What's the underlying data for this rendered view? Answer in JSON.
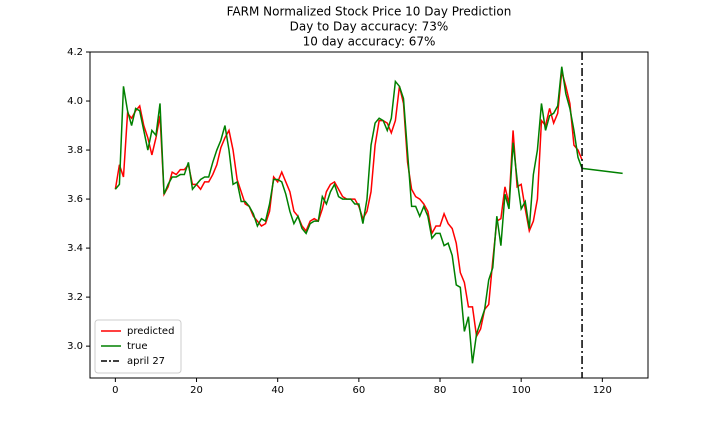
{
  "chart_data": {
    "type": "line",
    "title": "FARM Normalized Stock Price 10 Day Prediction",
    "subtitle": [
      "Day to Day accuracy: 73%",
      "10 day accuracy: 67%"
    ],
    "xlim": [
      -6.25,
      131.25
    ],
    "ylim": [
      2.87,
      4.2
    ],
    "xticks": [
      0,
      20,
      40,
      60,
      80,
      100,
      120
    ],
    "yticks": [
      {
        "value": 3,
        "label": "3.0"
      },
      3.2,
      3.4,
      3.6,
      3.8,
      {
        "value": 4,
        "label": "4.0"
      },
      4.2
    ],
    "legend": "lower left",
    "series": [
      {
        "name": "predicted",
        "color": "#ff0000",
        "x": [
          0,
          1,
          2,
          3,
          4,
          5,
          6,
          7,
          8,
          9,
          10,
          11,
          12,
          13,
          14,
          15,
          16,
          17,
          18,
          19,
          20,
          21,
          22,
          23,
          24,
          25,
          26,
          27,
          28,
          29,
          30,
          31,
          32,
          33,
          34,
          35,
          36,
          37,
          38,
          39,
          40,
          41,
          42,
          43,
          44,
          45,
          46,
          47,
          48,
          49,
          50,
          51,
          52,
          53,
          54,
          55,
          56,
          57,
          58,
          59,
          60,
          61,
          62,
          63,
          64,
          65,
          66,
          67,
          68,
          69,
          70,
          71,
          72,
          73,
          74,
          75,
          76,
          77,
          78,
          79,
          80,
          81,
          82,
          83,
          84,
          85,
          86,
          87,
          88,
          89,
          90,
          91,
          92,
          93,
          94,
          95,
          96,
          97,
          98,
          99,
          100,
          101,
          102,
          103,
          104,
          105,
          106,
          107,
          108,
          109,
          110,
          111,
          112,
          113,
          114,
          115
        ],
        "values": [
          3.64,
          3.74,
          3.69,
          3.95,
          3.93,
          3.96,
          3.98,
          3.9,
          3.85,
          3.78,
          3.85,
          3.94,
          3.62,
          3.65,
          3.71,
          3.7,
          3.72,
          3.72,
          3.74,
          3.66,
          3.66,
          3.64,
          3.67,
          3.67,
          3.7,
          3.74,
          3.81,
          3.85,
          3.88,
          3.8,
          3.68,
          3.63,
          3.58,
          3.57,
          3.53,
          3.51,
          3.49,
          3.5,
          3.55,
          3.69,
          3.67,
          3.71,
          3.67,
          3.63,
          3.55,
          3.53,
          3.49,
          3.47,
          3.51,
          3.52,
          3.51,
          3.56,
          3.63,
          3.66,
          3.67,
          3.64,
          3.61,
          3.6,
          3.6,
          3.6,
          3.57,
          3.52,
          3.55,
          3.63,
          3.82,
          3.92,
          3.92,
          3.91,
          3.87,
          3.92,
          4.06,
          3.99,
          3.75,
          3.64,
          3.61,
          3.6,
          3.58,
          3.55,
          3.46,
          3.49,
          3.49,
          3.54,
          3.5,
          3.48,
          3.42,
          3.3,
          3.26,
          3.16,
          3.16,
          3.04,
          3.07,
          3.15,
          3.17,
          3.35,
          3.51,
          3.52,
          3.65,
          3.58,
          3.88,
          3.65,
          3.66,
          3.56,
          3.47,
          3.51,
          3.6,
          3.92,
          3.9,
          3.97,
          3.91,
          3.95,
          4.12,
          4.06,
          3.99,
          3.82,
          3.8,
          3.76
        ]
      },
      {
        "name": "true",
        "color": "#008000",
        "x": [
          0,
          1,
          2,
          3,
          4,
          5,
          6,
          7,
          8,
          9,
          10,
          11,
          12,
          13,
          14,
          15,
          16,
          17,
          18,
          19,
          20,
          21,
          22,
          23,
          24,
          25,
          26,
          27,
          28,
          29,
          30,
          31,
          32,
          33,
          34,
          35,
          36,
          37,
          38,
          39,
          40,
          41,
          42,
          43,
          44,
          45,
          46,
          47,
          48,
          49,
          50,
          51,
          52,
          53,
          54,
          55,
          56,
          57,
          58,
          59,
          60,
          61,
          62,
          63,
          64,
          65,
          66,
          67,
          68,
          69,
          70,
          71,
          72,
          73,
          74,
          75,
          76,
          77,
          78,
          79,
          80,
          81,
          82,
          83,
          84,
          85,
          86,
          87,
          88,
          89,
          90,
          91,
          92,
          93,
          94,
          95,
          96,
          97,
          98,
          99,
          100,
          101,
          102,
          103,
          104,
          105,
          106,
          107,
          108,
          109,
          110,
          111,
          112,
          113,
          114,
          115,
          116,
          117,
          118,
          119,
          120,
          121,
          122,
          123,
          124,
          125
        ],
        "values": [
          3.64,
          3.66,
          4.06,
          3.96,
          3.9,
          3.97,
          3.96,
          3.88,
          3.8,
          3.88,
          3.86,
          3.99,
          3.62,
          3.66,
          3.69,
          3.69,
          3.7,
          3.7,
          3.75,
          3.64,
          3.66,
          3.68,
          3.69,
          3.69,
          3.75,
          3.8,
          3.84,
          3.9,
          3.8,
          3.66,
          3.67,
          3.59,
          3.59,
          3.57,
          3.54,
          3.49,
          3.52,
          3.51,
          3.58,
          3.68,
          3.68,
          3.67,
          3.62,
          3.55,
          3.5,
          3.53,
          3.48,
          3.46,
          3.5,
          3.51,
          3.51,
          3.61,
          3.58,
          3.63,
          3.66,
          3.61,
          3.6,
          3.6,
          3.6,
          3.58,
          3.58,
          3.5,
          3.6,
          3.82,
          3.91,
          3.93,
          3.92,
          3.88,
          3.93,
          4.08,
          4.06,
          4.01,
          3.79,
          3.57,
          3.57,
          3.53,
          3.57,
          3.53,
          3.44,
          3.46,
          3.46,
          3.41,
          3.42,
          3.37,
          3.25,
          3.24,
          3.06,
          3.12,
          2.93,
          3.05,
          3.1,
          3.15,
          3.27,
          3.32,
          3.53,
          3.41,
          3.62,
          3.56,
          3.83,
          3.68,
          3.56,
          3.59,
          3.48,
          3.7,
          3.8,
          3.99,
          3.88,
          3.94,
          3.95,
          3.98,
          4.14,
          4.03,
          3.97,
          3.88,
          3.77,
          3.725,
          3.723,
          3.721,
          3.719,
          3.717,
          3.715,
          3.713,
          3.711,
          3.709,
          3.707,
          3.705
        ]
      }
    ],
    "vline": {
      "x": 115,
      "name": "april 27",
      "color": "#000000"
    }
  }
}
